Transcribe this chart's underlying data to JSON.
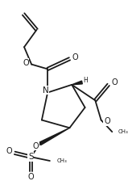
{
  "bg": "#ffffff",
  "lc": "#1a1a1a",
  "rc": "#1a1a1a",
  "lw": 1.3,
  "fs": 6.0,
  "figsize": [
    1.59,
    2.24
  ],
  "dpi": 100,
  "xlim": [
    0,
    159
  ],
  "ylim": [
    0,
    224
  ]
}
